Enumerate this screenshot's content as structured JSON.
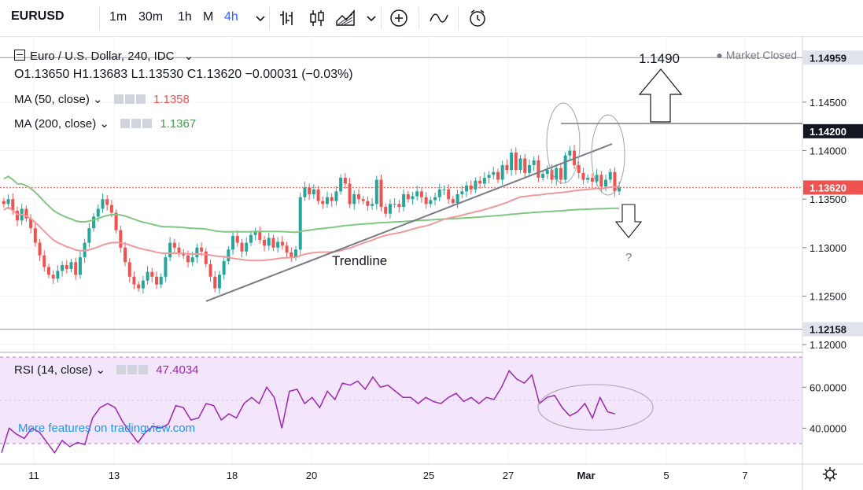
{
  "toolbar": {
    "symbol": "EURUSD",
    "intervals": [
      "1m",
      "30m",
      "1h",
      "M",
      "4h"
    ],
    "active_interval": "4h",
    "icons": [
      "bar-chart-icon",
      "candles-icon",
      "area-icon",
      "chevron-down-icon",
      "add-indicator-icon",
      "compare-icon",
      "alert-icon"
    ]
  },
  "legend": {
    "title": "Euro / U.S. Dollar, 240, IDC",
    "ohlc": "O1.13650 H1.13683 L1.13530 C1.13620 −0.00031 (−0.03%)",
    "ma50_label": "MA (50, close)",
    "ma50_value": "1.1358",
    "ma200_label": "MA (200, close)",
    "ma200_value": "1.1367",
    "market_status": "Market Closed"
  },
  "rsi_legend": {
    "label": "RSI (14, close)",
    "value": "47.4034"
  },
  "watermark": "More features on tradingview.com",
  "annotations": {
    "target": "1.1490",
    "trendline": "Trendline",
    "question": "?"
  },
  "colors": {
    "up": "#26a69a",
    "down": "#ef5350",
    "ma50": "#ef9a9a",
    "ma200": "#81c784",
    "rsi_line": "#9c27b0",
    "rsi_band": "#f3e5fb",
    "accent": "#2962ff"
  },
  "chart_data": [
    {
      "type": "candlestick",
      "x_labels": [
        "11",
        "13",
        "18",
        "20",
        "25",
        "27",
        "Mar",
        "5",
        "7"
      ],
      "price_axis_ticks": [
        1.145,
        1.14,
        1.135,
        1.13,
        1.125,
        1.12
      ],
      "price_axis_ticks_labels": [
        "1.14500",
        "1.14000",
        "1.13500",
        "1.13000",
        "1.12500",
        "1.12000"
      ],
      "highlighted_levels": [
        {
          "label": "1.14959",
          "value": 1.14959
        },
        {
          "label": "1.14200",
          "value": 1.142
        },
        {
          "label": "1.13620",
          "value": 1.1362
        },
        {
          "label": "1.12158",
          "value": 1.12158
        }
      ],
      "ylim": [
        1.1192,
        1.1518
      ],
      "close_series": [
        1.1345,
        1.135,
        1.1338,
        1.1328,
        1.134,
        1.133,
        1.132,
        1.1305,
        1.1292,
        1.128,
        1.1272,
        1.1268,
        1.1276,
        1.1282,
        1.1278,
        1.1285,
        1.1272,
        1.129,
        1.1305,
        1.132,
        1.1332,
        1.134,
        1.135,
        1.1344,
        1.1336,
        1.1318,
        1.13,
        1.1285,
        1.127,
        1.1262,
        1.1258,
        1.1266,
        1.1275,
        1.127,
        1.1262,
        1.127,
        1.129,
        1.1305,
        1.13,
        1.1295,
        1.1292,
        1.1285,
        1.129,
        1.13,
        1.1296,
        1.1283,
        1.127,
        1.1258,
        1.1272,
        1.1286,
        1.1298,
        1.1312,
        1.1305,
        1.1296,
        1.1305,
        1.1313,
        1.1316,
        1.1308,
        1.1302,
        1.131,
        1.13,
        1.1306,
        1.1302,
        1.1295,
        1.129,
        1.1298,
        1.1352,
        1.1362,
        1.1355,
        1.136,
        1.1348,
        1.1345,
        1.1352,
        1.1348,
        1.1358,
        1.1372,
        1.1366,
        1.1345,
        1.1355,
        1.135,
        1.1348,
        1.1343,
        1.1345,
        1.137,
        1.1342,
        1.1335,
        1.1345,
        1.1345,
        1.1342,
        1.1355,
        1.135,
        1.1353,
        1.1358,
        1.1352,
        1.1345,
        1.1349,
        1.1352,
        1.136,
        1.136,
        1.135,
        1.1346,
        1.1355,
        1.1358,
        1.1364,
        1.136,
        1.1369,
        1.1366,
        1.1372,
        1.1375,
        1.1378,
        1.137,
        1.1385,
        1.138,
        1.1398,
        1.138,
        1.1392,
        1.1377,
        1.1385,
        1.139,
        1.1372,
        1.1376,
        1.138,
        1.137,
        1.1382,
        1.137,
        1.1395,
        1.14,
        1.1385,
        1.1377,
        1.137,
        1.1372,
        1.1368,
        1.1375,
        1.1363,
        1.137,
        1.1378,
        1.1358,
        1.1362
      ],
      "series": [
        {
          "name": "MA (50, close)",
          "value": 1.1358
        },
        {
          "name": "MA (200, close)",
          "value": 1.1367
        }
      ]
    },
    {
      "type": "line",
      "name": "RSI (14, close)",
      "y_ticks": [
        60,
        40
      ],
      "y_ticks_labels": [
        "60.0000",
        "40.0000"
      ],
      "band": [
        30,
        70
      ],
      "ylim": [
        22.5,
        77
      ],
      "values": [
        28,
        40,
        37,
        35,
        40,
        38,
        33,
        28,
        34,
        31,
        33,
        32,
        45,
        50,
        52,
        50,
        43,
        38,
        33,
        38,
        41,
        40,
        42,
        51,
        50,
        44,
        45,
        52,
        51,
        44,
        47,
        45,
        52,
        55,
        52,
        60,
        55,
        40,
        58,
        59,
        52,
        55,
        50,
        58,
        54,
        62,
        61,
        63,
        59,
        65,
        60,
        61,
        58,
        55,
        55,
        52,
        55,
        53,
        52,
        55,
        57,
        53,
        55,
        52,
        55,
        54,
        60,
        68,
        64,
        62,
        66,
        52,
        55,
        56,
        50,
        46,
        48,
        52,
        45,
        55,
        48,
        47
      ]
    }
  ]
}
